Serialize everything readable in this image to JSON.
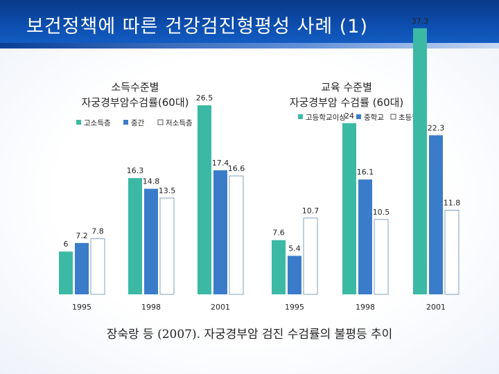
{
  "slide": {
    "title": "보건정책에 따른 건강검진형평성 사례 (1)",
    "caption": "장숙랑 등 (2007). 자궁경부암 검진 수검률의 불평등 추이"
  },
  "colors": {
    "teal": "#3bb9a4",
    "blue": "#3a7cc9",
    "white": "#ffffff",
    "outline": "#7f9fbf"
  },
  "chart_data": [
    {
      "type": "bar",
      "title_lines": [
        "소득수준별",
        "자궁경부암수검률(60대)"
      ],
      "categories": [
        "1995",
        "1998",
        "2001"
      ],
      "series": [
        {
          "name": "고소득층",
          "values": [
            6,
            16.3,
            26.5
          ]
        },
        {
          "name": "중간",
          "values": [
            7.2,
            14.8,
            17.4
          ]
        },
        {
          "name": "저소득층",
          "values": [
            7.8,
            13.5,
            16.6
          ]
        }
      ],
      "value_labels": [
        [
          "6",
          "16.3",
          "26.5"
        ],
        [
          "7.2",
          "14.8",
          "17.4"
        ],
        [
          "7.8",
          "13.5",
          "16.6"
        ]
      ],
      "ylim": [
        0,
        40
      ]
    },
    {
      "type": "bar",
      "title_lines": [
        "교육 수준별",
        "자궁경부암 수검률 (60대)"
      ],
      "categories": [
        "1995",
        "1998",
        "2001"
      ],
      "series": [
        {
          "name": "고등학교이상",
          "values": [
            7.6,
            24,
            37.3
          ]
        },
        {
          "name": "중학교",
          "values": [
            5.4,
            16.1,
            22.3
          ]
        },
        {
          "name": "초등학교",
          "values": [
            10.7,
            10.5,
            11.8
          ]
        }
      ],
      "value_labels": [
        [
          "7.6",
          "24",
          "37.3"
        ],
        [
          "5.4",
          "16.1",
          "22.3"
        ],
        [
          "10.7",
          "10.5",
          "11.8"
        ]
      ],
      "ylim": [
        0,
        40
      ]
    }
  ]
}
